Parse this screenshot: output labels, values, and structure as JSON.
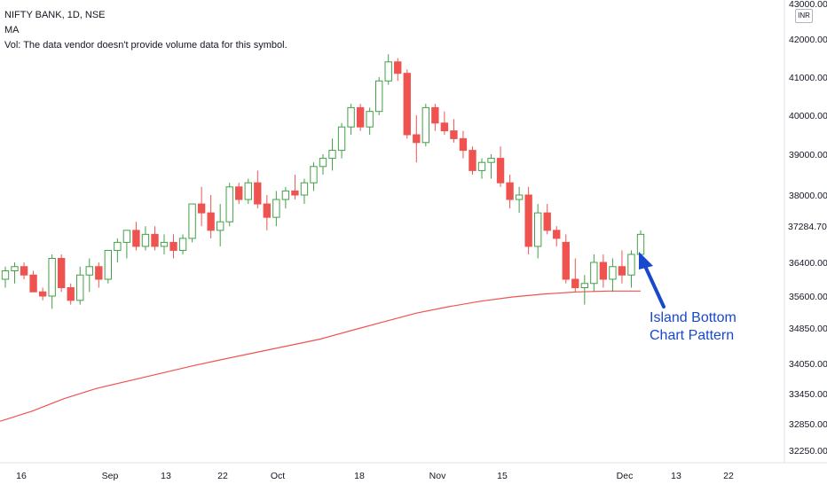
{
  "legend": {
    "symbol": "NIFTY BANK, 1D, NSE",
    "ma": "MA",
    "vol": "Vol: The data vendor doesn't provide volume data for this symbol."
  },
  "currency": "INR",
  "annotation": {
    "line1": "Island Bottom",
    "line2": "Chart Pattern"
  },
  "last_price_label": "37284.70",
  "colors": {
    "up": "#26a69a",
    "up_border": "#43a047",
    "down": "#ef5350",
    "ma": "#ef5350",
    "arrow": "#1848cc"
  },
  "chart_data": {
    "type": "candlestick",
    "x_ticks": [
      "16",
      "Sep",
      "13",
      "22",
      "Oct",
      "18",
      "Nov",
      "15",
      "Dec",
      "13",
      "22"
    ],
    "y_ticks": [
      "43000.00",
      "42000.00",
      "41000.00",
      "40000.00",
      "39000.00",
      "38000.00",
      "37284.70",
      "36400.00",
      "35600.00",
      "34850.00",
      "34050.00",
      "33450.00",
      "32850.00",
      "32250.00"
    ],
    "ylim": [
      32000,
      43000
    ],
    "candles": [
      [
        36000,
        36300,
        35800,
        36200
      ],
      [
        36200,
        36400,
        35900,
        36300
      ],
      [
        36300,
        36400,
        36000,
        36100
      ],
      [
        36100,
        36200,
        35700,
        35700
      ],
      [
        35700,
        35800,
        35500,
        35600
      ],
      [
        35600,
        36600,
        35300,
        36500
      ],
      [
        36500,
        36600,
        35700,
        35800
      ],
      [
        35800,
        35900,
        35400,
        35500
      ],
      [
        35500,
        36300,
        35400,
        36100
      ],
      [
        36100,
        36500,
        35700,
        36300
      ],
      [
        36300,
        36400,
        35800,
        36000
      ],
      [
        36000,
        36700,
        35900,
        36700
      ],
      [
        36700,
        37000,
        36400,
        36900
      ],
      [
        36900,
        37200,
        36500,
        37200
      ],
      [
        37200,
        37400,
        36700,
        36800
      ],
      [
        36800,
        37300,
        36700,
        37100
      ],
      [
        37100,
        37300,
        36700,
        36800
      ],
      [
        36800,
        37100,
        36600,
        36900
      ],
      [
        36900,
        37100,
        36500,
        36700
      ],
      [
        36700,
        37100,
        36600,
        37000
      ],
      [
        37000,
        37800,
        36900,
        37800
      ],
      [
        37800,
        38200,
        37300,
        37600
      ],
      [
        37600,
        38000,
        37000,
        37200
      ],
      [
        37200,
        37800,
        36800,
        37400
      ],
      [
        37400,
        38300,
        37300,
        38200
      ],
      [
        38200,
        38300,
        37800,
        37900
      ],
      [
        37900,
        38400,
        37800,
        38300
      ],
      [
        38300,
        38600,
        37700,
        37800
      ],
      [
        37800,
        38000,
        37200,
        37500
      ],
      [
        37500,
        38100,
        37300,
        37900
      ],
      [
        37900,
        38200,
        37700,
        38100
      ],
      [
        38100,
        38500,
        37900,
        38000
      ],
      [
        38000,
        38400,
        37800,
        38300
      ],
      [
        38300,
        38800,
        38100,
        38700
      ],
      [
        38700,
        39000,
        38500,
        38900
      ],
      [
        38900,
        39400,
        38600,
        39100
      ],
      [
        39100,
        39800,
        38900,
        39700
      ],
      [
        39700,
        40300,
        39500,
        40200
      ],
      [
        40200,
        40300,
        39600,
        39700
      ],
      [
        39700,
        40200,
        39500,
        40100
      ],
      [
        40100,
        41000,
        40000,
        40900
      ],
      [
        40900,
        41600,
        40800,
        41400
      ],
      [
        41400,
        41500,
        40900,
        41100
      ],
      [
        41100,
        41200,
        39400,
        39500
      ],
      [
        39500,
        40000,
        38800,
        39300
      ],
      [
        39300,
        40300,
        39200,
        40200
      ],
      [
        40200,
        40300,
        39600,
        39800
      ],
      [
        39800,
        40100,
        39500,
        39600
      ],
      [
        39600,
        39900,
        39300,
        39400
      ],
      [
        39400,
        39600,
        38900,
        39100
      ],
      [
        39100,
        39200,
        38500,
        38600
      ],
      [
        38600,
        38900,
        38400,
        38800
      ],
      [
        38800,
        39000,
        38400,
        38900
      ],
      [
        38900,
        39200,
        38200,
        38300
      ],
      [
        38300,
        38500,
        37700,
        37900
      ],
      [
        37900,
        38200,
        37600,
        38000
      ],
      [
        38000,
        38200,
        36600,
        36800
      ],
      [
        36800,
        37800,
        36500,
        37600
      ],
      [
        37600,
        37800,
        37100,
        37200
      ],
      [
        37200,
        37300,
        36800,
        37000
      ],
      [
        36900,
        37100,
        35900,
        36000
      ],
      [
        36000,
        36500,
        35700,
        35800
      ],
      [
        35800,
        36100,
        35400,
        35900
      ],
      [
        35900,
        36600,
        35700,
        36400
      ],
      [
        36400,
        36600,
        35800,
        36000
      ],
      [
        36000,
        36500,
        35700,
        36300
      ],
      [
        36300,
        36700,
        35900,
        36100
      ],
      [
        36100,
        36700,
        35800,
        36600
      ],
      [
        36600,
        37200,
        36300,
        37100
      ]
    ],
    "ma_series": [
      32900,
      33100,
      33350,
      33550,
      33700,
      33850,
      34000,
      34150,
      34300,
      34450,
      34600,
      34800,
      35000,
      35200,
      35350,
      35480,
      35580,
      35650,
      35700,
      35720,
      35720
    ],
    "annotations": [
      "Island Bottom",
      "Chart Pattern"
    ]
  }
}
